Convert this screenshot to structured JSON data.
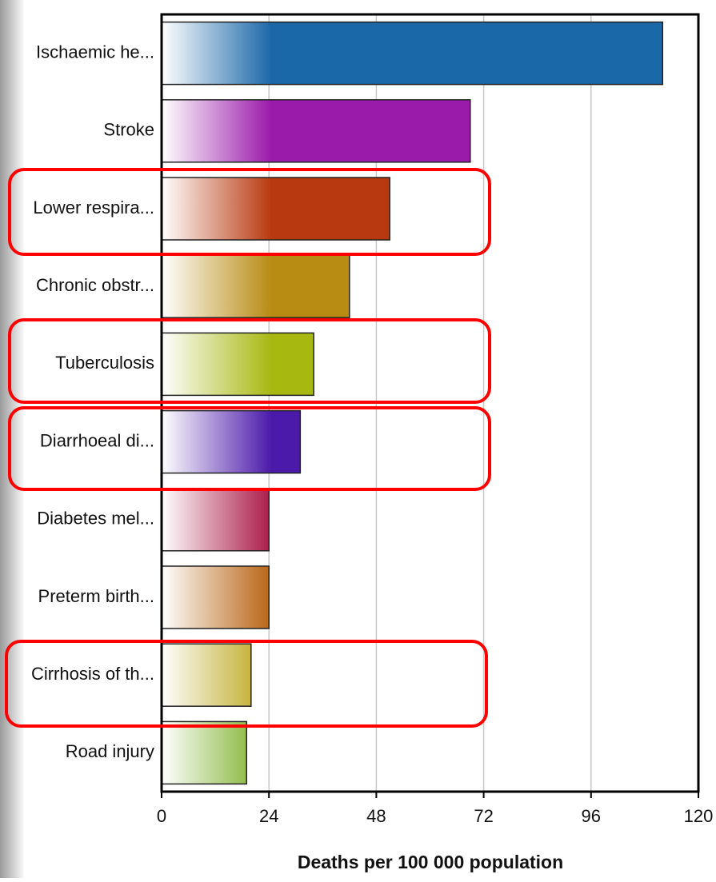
{
  "chart_data": {
    "type": "bar",
    "orientation": "horizontal",
    "x_label": "Deaths per 100 000 population",
    "categories": [
      "Ischaemic he...",
      "Stroke",
      "Lower respira...",
      "Chronic obstr...",
      "Tuberculosis",
      "Diarrhoeal di...",
      "Diabetes mel...",
      "Preterm birth...",
      "Cirrhosis of th...",
      "Road injury"
    ],
    "values": [
      112,
      69,
      51,
      42,
      34,
      31,
      24,
      24,
      20,
      19
    ],
    "colors": [
      "#1b68a8",
      "#9a1aaa",
      "#b8390f",
      "#b88b13",
      "#a7b811",
      "#4b1aaa",
      "#aa1a48",
      "#b86413",
      "#b8a313",
      "#72aa1a"
    ],
    "xlim": [
      0,
      120
    ],
    "xticks": [
      0,
      24,
      48,
      72,
      96,
      120
    ],
    "grid": true
  }
}
